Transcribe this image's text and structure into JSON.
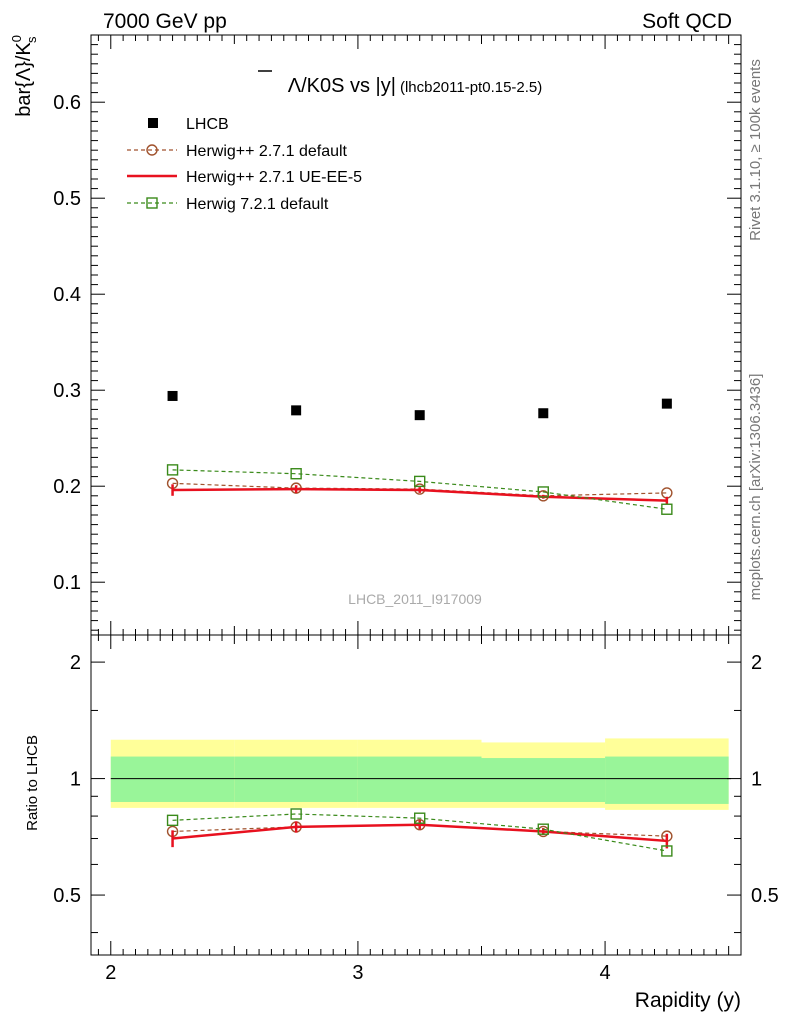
{
  "header": {
    "left": "7000 GeV pp",
    "right": "Soft QCD"
  },
  "side_labels": {
    "rivet": "Rivet 3.1.10, ≥ 100k events",
    "mcplots": "mcplots.cern.ch [arXiv:1306.3436]"
  },
  "watermark": "LHCB_2011_I917009",
  "chart_data": {
    "type": "scatter",
    "title": {
      "main": "Λ/K0S vs |y|",
      "overline_char": "Λ",
      "rest": "/K0S vs |y|",
      "sub": "(lhcb2011-pt0.15-2.5)"
    },
    "xlabel": "Rapidity (y)",
    "ylabel": "bar{Λ}/K",
    "ylabel_sup": "0",
    "ylabel_sub": "s",
    "ratio_ylabel": "Ratio to LHCB",
    "xlim": [
      1.92,
      4.55
    ],
    "ylim": [
      0.045,
      0.67
    ],
    "ratio_ylim": [
      0.35,
      2.35
    ],
    "x_ticks": [
      "2",
      "3",
      "4"
    ],
    "y_ticks": [
      "0.1",
      "0.2",
      "0.3",
      "0.4",
      "0.5",
      "0.6"
    ],
    "ratio_ticks": [
      "0.5",
      "1",
      "2"
    ],
    "x": [
      2.25,
      2.75,
      3.25,
      3.75,
      4.25
    ],
    "bin_edges": [
      2.0,
      2.5,
      3.0,
      3.5,
      4.0,
      4.5
    ],
    "ratio_band_inner": [
      [
        0.87,
        1.14
      ],
      [
        0.87,
        1.14
      ],
      [
        0.87,
        1.14
      ],
      [
        0.87,
        1.13
      ],
      [
        0.86,
        1.14
      ]
    ],
    "ratio_band_outer": [
      [
        0.84,
        1.26
      ],
      [
        0.84,
        1.26
      ],
      [
        0.84,
        1.26
      ],
      [
        0.84,
        1.24
      ],
      [
        0.83,
        1.27
      ]
    ],
    "series": [
      {
        "name": "LHCB",
        "style": "data",
        "color": "#000000",
        "values": [
          0.294,
          0.279,
          0.274,
          0.276,
          0.286
        ],
        "ratio": [
          1.0,
          1.0,
          1.0,
          1.0,
          1.0
        ]
      },
      {
        "name": "Herwig++ 2.7.1 default",
        "style": "circle-dashed",
        "color": "#a0522d",
        "values": [
          0.203,
          0.198,
          0.197,
          0.19,
          0.193
        ],
        "ratio": [
          0.73,
          0.75,
          0.76,
          0.73,
          0.71
        ]
      },
      {
        "name": "Herwig++ 2.7.1 UE-EE-5",
        "style": "line-errorbar",
        "color": "#e8111f",
        "values": [
          0.196,
          0.197,
          0.196,
          0.189,
          0.185
        ],
        "errors": [
          0.006,
          0.004,
          0.003,
          0.002,
          0.004
        ],
        "ratio": [
          0.7,
          0.75,
          0.76,
          0.73,
          0.69
        ],
        "ratio_errors": [
          0.035,
          0.025,
          0.02,
          0.015,
          0.03
        ]
      },
      {
        "name": "Herwig 7.2.1 default",
        "style": "square-dashed",
        "color": "#3a8a1a",
        "values": [
          0.217,
          0.213,
          0.205,
          0.194,
          0.176
        ],
        "ratio": [
          0.78,
          0.81,
          0.79,
          0.74,
          0.65
        ]
      }
    ]
  }
}
